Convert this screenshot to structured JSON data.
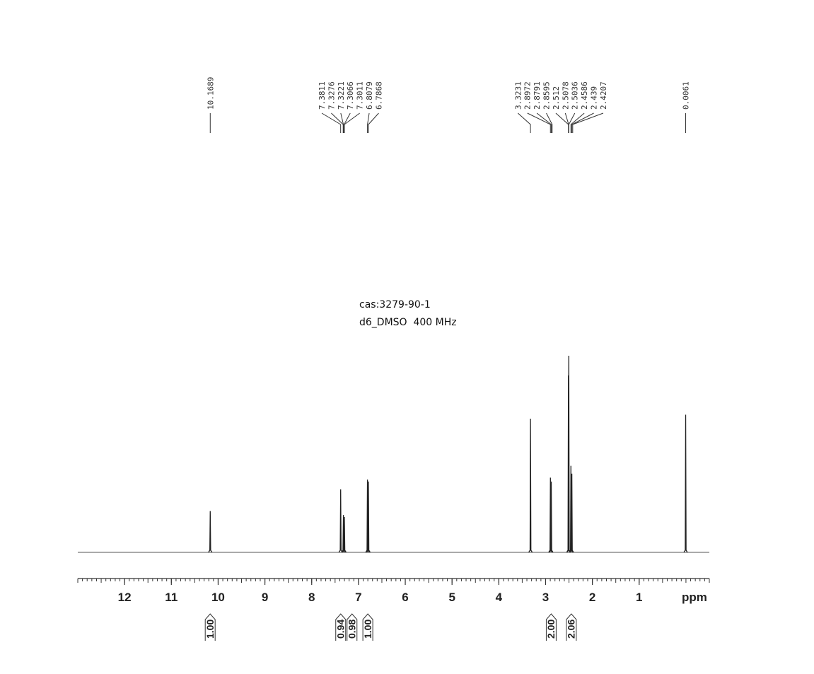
{
  "chart_data": {
    "type": "nmr",
    "annotations": [
      "cas:3279-90-1",
      "d6_DMSO  400 MHz"
    ],
    "x_label": "ppm",
    "xlim": [
      13,
      -0.5
    ],
    "xticks": [
      12,
      11,
      10,
      9,
      8,
      7,
      6,
      5,
      4,
      3,
      2,
      1
    ],
    "peaks": {
      "x": [
        10.169,
        7.381,
        7.322,
        7.301,
        6.808,
        6.787,
        3.323,
        2.897,
        2.879,
        2.512,
        2.504,
        2.459,
        2.439,
        0.006
      ],
      "values": [
        21,
        32,
        19,
        18,
        37,
        36,
        68,
        38,
        36,
        90,
        100,
        44,
        40,
        70
      ]
    },
    "peak_labels": [
      10.1689,
      7.3811,
      7.3276,
      7.3221,
      7.3066,
      7.3011,
      6.8079,
      6.7868,
      3.3231,
      2.8972,
      2.8791,
      2.8595,
      2.512,
      2.5078,
      2.5036,
      2.4586,
      2.439,
      2.4207,
      0.0061
    ],
    "integrals": {
      "x": [
        10.17,
        7.38,
        7.31,
        6.8,
        2.88,
        2.45
      ],
      "values": [
        1,
        0.94,
        0.98,
        1,
        2,
        2.06
      ],
      "value_labels": [
        "1.00",
        "0.94",
        "0.98",
        "1.00",
        "2.00",
        "2.06"
      ]
    }
  }
}
